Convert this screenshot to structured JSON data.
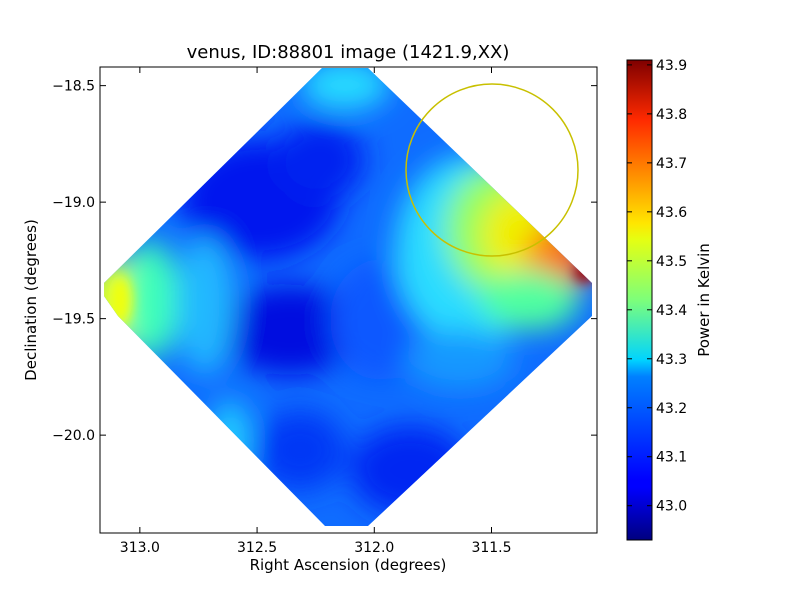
{
  "chart_data": {
    "type": "heatmap",
    "title": "venus, ID:88801 image (1421.9,XX)",
    "xlabel": "Right Ascension (degrees)",
    "ylabel": "Declination (degrees)",
    "xlim": [
      313.17,
      311.05
    ],
    "ylim": [
      -20.42,
      -18.42
    ],
    "x_ticks": [
      313.0,
      312.5,
      312.0,
      311.5
    ],
    "x_tick_labels": [
      "313.0",
      "312.5",
      "312.0",
      "311.5"
    ],
    "y_ticks": [
      -18.5,
      -19.0,
      -19.5,
      -20.0
    ],
    "y_tick_labels": [
      "−18.5",
      "−19.0",
      "−19.5",
      "−20.0"
    ],
    "colorbar": {
      "label": "Power in Kelvin",
      "range": [
        42.93,
        43.91
      ],
      "ticks": [
        43.0,
        43.1,
        43.2,
        43.3,
        43.4,
        43.5,
        43.6,
        43.7,
        43.8,
        43.9
      ],
      "tick_labels": [
        "43.0",
        "43.1",
        "43.2",
        "43.3",
        "43.4",
        "43.5",
        "43.6",
        "43.7",
        "43.8",
        "43.9"
      ],
      "colormap": "jet"
    },
    "image_extent": {
      "ra_min": 311.06,
      "ra_max": 313.16,
      "dec_min": -20.41,
      "dec_max": -18.43
    },
    "value_points": [
      {
        "ra": 312.12,
        "dec": -18.48,
        "value": 43.3
      },
      {
        "ra": 312.42,
        "dec": -18.9,
        "value": 43.05
      },
      {
        "ra": 312.55,
        "dec": -19.17,
        "value": 43.0
      },
      {
        "ra": 312.35,
        "dec": -19.6,
        "value": 42.98
      },
      {
        "ra": 312.1,
        "dec": -19.4,
        "value": 43.12
      },
      {
        "ra": 313.1,
        "dec": -19.5,
        "value": 43.47
      },
      {
        "ra": 312.95,
        "dec": -19.35,
        "value": 43.3
      },
      {
        "ra": 312.05,
        "dec": -20.35,
        "value": 43.18
      },
      {
        "ra": 312.0,
        "dec": -20.0,
        "value": 43.08
      },
      {
        "ra": 311.8,
        "dec": -19.2,
        "value": 43.15
      },
      {
        "ra": 311.55,
        "dec": -19.0,
        "value": 43.5
      },
      {
        "ra": 311.25,
        "dec": -19.2,
        "value": 43.75
      },
      {
        "ra": 311.12,
        "dec": -19.3,
        "value": 43.9
      },
      {
        "ra": 311.45,
        "dec": -19.5,
        "value": 43.35
      },
      {
        "ra": 311.7,
        "dec": -19.8,
        "value": 43.15
      }
    ],
    "circle": {
      "center_ra": 311.47,
      "center_dec": -18.87,
      "color": "#c8c000"
    },
    "grid": false
  }
}
